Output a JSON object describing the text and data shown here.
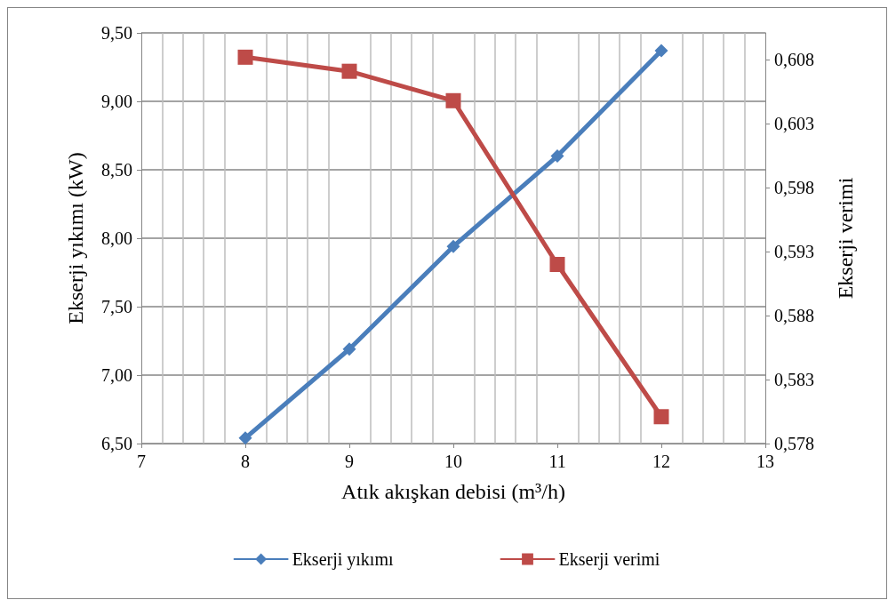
{
  "chart_data": {
    "type": "line",
    "xlabel": "Atık akışkan debisi (m³/h)",
    "ylabel": "Ekserji yıkımı (kW)",
    "y2label": "Ekserji verimi",
    "xlim": [
      7,
      13
    ],
    "xticks": [
      7,
      8,
      9,
      10,
      11,
      12,
      13
    ],
    "ylim": [
      6.5,
      9.5
    ],
    "yticks": [
      {
        "value": 6.5,
        "label": "6,50"
      },
      {
        "value": 7,
        "label": "7,00"
      },
      {
        "value": 7.5,
        "label": "7,50"
      },
      {
        "value": 8,
        "label": "8,00"
      },
      {
        "value": 8.5,
        "label": "8,50"
      },
      {
        "value": 9,
        "label": "9,00"
      },
      {
        "value": 9.5,
        "label": "9,50"
      }
    ],
    "y2lim": [
      0.578,
      0.6101
    ],
    "y2ticks": [
      {
        "value": 0.578,
        "label": "0,578"
      },
      {
        "value": 0.583,
        "label": "0,583"
      },
      {
        "value": 0.588,
        "label": "0,588"
      },
      {
        "value": 0.593,
        "label": "0,593"
      },
      {
        "value": 0.598,
        "label": "0,598"
      },
      {
        "value": 0.603,
        "label": "0,603"
      },
      {
        "value": 0.608,
        "label": "0,608"
      }
    ],
    "x": [
      8,
      9,
      10,
      11,
      12
    ],
    "series": [
      {
        "name": "Ekserji yıkımı",
        "color": "#4a7ebb",
        "marker": "diamond",
        "values": [
          6.54,
          7.19,
          7.94,
          8.6,
          9.37
        ]
      },
      {
        "name": "Ekserji verimi",
        "color": "#be4b48",
        "marker": "square",
        "axis": "y2",
        "values": [
          0.6082,
          0.6071,
          0.6048,
          0.592,
          0.5801
        ]
      }
    ],
    "grid": true,
    "legend": "bottom",
    "line_style": "solid"
  }
}
